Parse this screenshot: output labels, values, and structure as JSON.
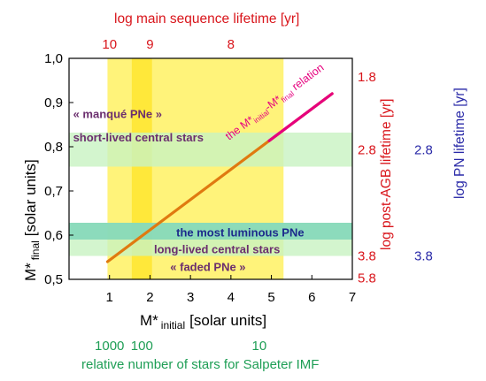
{
  "colors": {
    "yellow_band": "#fff37a",
    "yellow_strong": "#ffe83a",
    "green_band": "#c8f2c2",
    "teal_band": "#7fd6b8",
    "relation_line": "#e07a10",
    "relation_label": "#e6007e",
    "red_axis": "#d9151b",
    "blue_axis": "#2a2aa8",
    "green_axis": "#1e9e55",
    "purple_text": "#6b2e6e",
    "navy_text": "#1c2a8c",
    "black": "#000000"
  },
  "chart_data": {
    "type": "line",
    "x_axis": {
      "label_main": "M*",
      "label_sub": "initial",
      "label_rest": "[solar units]",
      "range": [
        0,
        7
      ],
      "ticks": [
        "1",
        "2",
        "3",
        "4",
        "5",
        "6",
        "7"
      ]
    },
    "y_axis": {
      "label_main": "M*",
      "label_sub": "final",
      "label_rest": "[solar units]",
      "range": [
        0.5,
        1.0
      ],
      "ticks": [
        "0,5",
        "0,6",
        "0,7",
        "0,8",
        "0,9",
        "1,0"
      ]
    },
    "top_axis": {
      "label": "log main sequence lifetime  [yr]",
      "ticks": [
        {
          "x": 1.0,
          "label": "10"
        },
        {
          "x": 2.0,
          "label": "9"
        },
        {
          "x": 4.0,
          "label": "8"
        }
      ]
    },
    "right_axis_agb": {
      "label": "log post-AGB lifetime [yr]",
      "ticks": [
        {
          "y": 0.96,
          "label": "1.8"
        },
        {
          "y": 0.795,
          "label": "2.8"
        },
        {
          "y": 0.555,
          "label": "3.8"
        },
        {
          "y": 0.505,
          "label": "5.8"
        }
      ]
    },
    "right_axis_pn": {
      "label": "log PN lifetime [yr]",
      "ticks": [
        {
          "y": 0.795,
          "label": "2.8"
        },
        {
          "y": 0.555,
          "label": "3.8"
        }
      ]
    },
    "bottom_axis_imf": {
      "label": "relative number of stars for Salpeter IMF",
      "ticks": [
        {
          "x": 1.0,
          "label": "1000"
        },
        {
          "x": 1.8,
          "label": "100"
        },
        {
          "x": 4.7,
          "label": "10"
        }
      ]
    },
    "series": [
      {
        "label_main": "the M*",
        "label_sub1": "initial",
        "label_mid": "-M*",
        "label_sub2": "final",
        "label_end": " relation",
        "x": [
          0.95,
          6.5
        ],
        "y": [
          0.54,
          0.92
        ]
      }
    ],
    "regions": [
      {
        "orientation": "vertical",
        "x0": 0.95,
        "x1": 5.3,
        "color": "yellow_band"
      },
      {
        "orientation": "vertical",
        "x0": 1.55,
        "x1": 2.05,
        "color": "yellow_strong"
      },
      {
        "orientation": "horizontal",
        "y0": 0.755,
        "y1": 0.832,
        "color": "green_band"
      },
      {
        "orientation": "horizontal",
        "y0": 0.553,
        "y1": 0.628,
        "color": "green_band"
      },
      {
        "orientation": "horizontal",
        "y0": 0.59,
        "y1": 0.628,
        "color": "teal_band"
      }
    ],
    "annotations": [
      {
        "text": "« manqué PNe »",
        "x": 0.1,
        "y": 0.873,
        "color": "purple_text"
      },
      {
        "text": "short-lived central stars",
        "x": 0.1,
        "y": 0.82,
        "color": "purple_text"
      },
      {
        "text": "the most luminous PNe",
        "x": 2.65,
        "y": 0.605,
        "color": "navy_text"
      },
      {
        "text": "long-lived central stars",
        "x": 2.1,
        "y": 0.567,
        "color": "purple_text"
      },
      {
        "text": "« faded PNe »",
        "x": 2.5,
        "y": 0.527,
        "color": "purple_text"
      }
    ]
  }
}
